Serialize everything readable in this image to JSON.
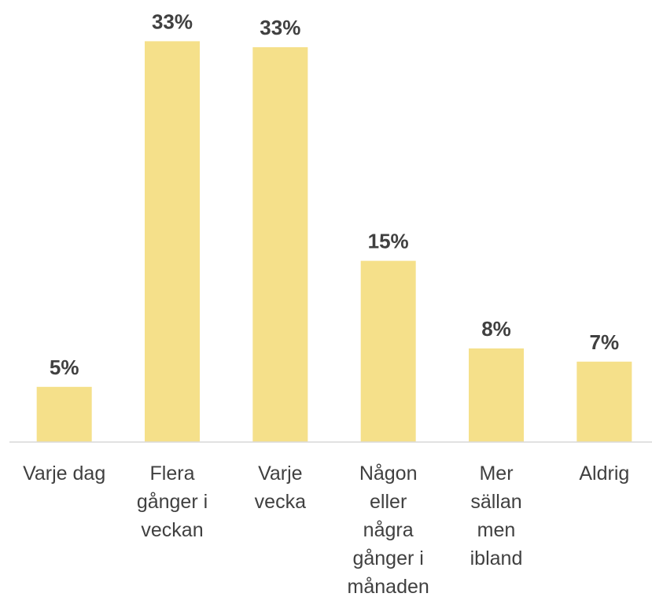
{
  "chart_data": {
    "type": "bar",
    "categories": [
      "Varje dag",
      "Flera\ngånger i\nveckan",
      "Varje\nvecka",
      "Någon\neller\nnågra\ngånger i\nmånaden",
      "Mer\nsällan\nmen\nibland",
      "Aldrig"
    ],
    "values": [
      4.6,
      33.4,
      32.9,
      15.1,
      7.8,
      6.7
    ],
    "value_labels": [
      "5%",
      "33%",
      "33%",
      "15%",
      "8%",
      "7%"
    ],
    "color": "#f5e08a",
    "ylim": [
      0,
      35
    ]
  }
}
